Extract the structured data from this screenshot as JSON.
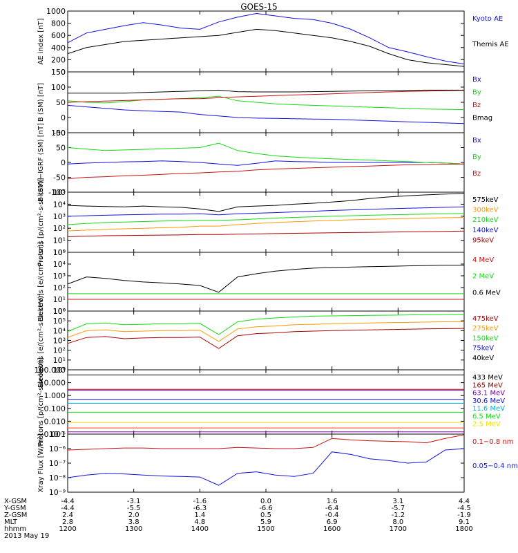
{
  "title": "GOES-15",
  "colors": {
    "blue": "#1010e0",
    "green": "#10dd10",
    "red": "#cc1010",
    "black": "#000000",
    "orange": "#ff9900",
    "darkred": "#aa0000",
    "purple": "#7700aa",
    "cyan": "#00b0d0",
    "yellow": "#f0e000",
    "salmon": "#ff4400"
  },
  "chart_data": [
    {
      "type": "line",
      "ylabel": "AE index [nT]",
      "ylim": [
        0,
        1000
      ],
      "yticks": [
        "0",
        "200",
        "400",
        "600",
        "800",
        "1000"
      ],
      "series": [
        {
          "name": "Kyoto AE",
          "color": "blue",
          "values": [
            480,
            640,
            700,
            760,
            810,
            770,
            720,
            700,
            820,
            900,
            960,
            920,
            880,
            860,
            800,
            700,
            560,
            400,
            330,
            250,
            180,
            130
          ]
        },
        {
          "name": "Themis AE",
          "color": "black",
          "values": [
            300,
            400,
            450,
            500,
            520,
            540,
            560,
            580,
            600,
            650,
            700,
            680,
            640,
            600,
            560,
            500,
            420,
            300,
            200,
            150,
            120,
            90
          ]
        }
      ]
    },
    {
      "type": "line",
      "ylabel": "B (SM) [nT]",
      "ylim": [
        -50,
        150
      ],
      "yticks": [
        "-50",
        "0",
        "50",
        "100",
        "150"
      ],
      "series": [
        {
          "name": "Bx",
          "color": "blue",
          "values": [
            40,
            35,
            30,
            25,
            22,
            20,
            18,
            10,
            5,
            0,
            -2,
            -3,
            -4,
            -5,
            -6,
            -8,
            -10,
            -12,
            -14,
            -16,
            -18,
            -20
          ]
        },
        {
          "name": "By",
          "color": "green",
          "values": [
            55,
            50,
            48,
            52,
            58,
            60,
            62,
            65,
            70,
            55,
            50,
            45,
            42,
            40,
            38,
            36,
            34,
            32,
            30,
            28,
            27,
            26
          ]
        },
        {
          "name": "Bz",
          "color": "red",
          "values": [
            50,
            52,
            54,
            56,
            58,
            60,
            62,
            62,
            65,
            68,
            70,
            72,
            74,
            76,
            78,
            80,
            82,
            84,
            86,
            87,
            88,
            89
          ]
        },
        {
          "name": "Bmag",
          "color": "black",
          "values": [
            80,
            80,
            80,
            80,
            82,
            84,
            86,
            88,
            90,
            85,
            84,
            84,
            84,
            85,
            86,
            87,
            88,
            88,
            89,
            90,
            90,
            90
          ]
        }
      ]
    },
    {
      "type": "line",
      "ylabel": "B (SM)−IGRF (SM) [nT]",
      "ylim": [
        -100,
        100
      ],
      "yticks": [
        "-100",
        "-50",
        "0",
        "50",
        "100"
      ],
      "series": [
        {
          "name": "Bx",
          "color": "blue",
          "values": [
            -5,
            -2,
            0,
            2,
            3,
            5,
            3,
            0,
            -5,
            -10,
            -3,
            5,
            3,
            2,
            0,
            0,
            0,
            0,
            0,
            0,
            -2,
            -5
          ]
        },
        {
          "name": "By",
          "color": "green",
          "values": [
            50,
            45,
            40,
            42,
            44,
            46,
            48,
            50,
            65,
            40,
            30,
            22,
            18,
            15,
            12,
            10,
            8,
            5,
            3,
            0,
            -2,
            -5
          ]
        },
        {
          "name": "Bz",
          "color": "red",
          "values": [
            -55,
            -50,
            -48,
            -45,
            -43,
            -40,
            -37,
            -35,
            -32,
            -30,
            -25,
            -22,
            -20,
            -18,
            -16,
            -14,
            -12,
            -10,
            -8,
            -7,
            -6,
            -5
          ]
        }
      ]
    },
    {
      "type": "line",
      "ylabel": "Protons [p/(cm²-s-sr-keV)]",
      "log": true,
      "ylim": [
        1,
        100000
      ],
      "yticks": [
        "10⁰",
        "10¹",
        "10²",
        "10³",
        "10⁴",
        "10⁵"
      ],
      "series": [
        {
          "name": "575keV",
          "color": "black",
          "values": [
            8000,
            7000,
            6500,
            6000,
            7000,
            6000,
            5500,
            4000,
            2500,
            6000,
            7000,
            8000,
            10000,
            12000,
            15000,
            20000,
            30000,
            40000,
            50000,
            60000,
            70000,
            80000
          ]
        },
        {
          "name": "300keV",
          "color": "orange",
          "values": [
            60,
            70,
            80,
            90,
            100,
            110,
            120,
            150,
            150,
            200,
            250,
            300,
            350,
            400,
            450,
            500,
            550,
            600,
            650,
            700,
            750,
            800
          ]
        },
        {
          "name": "210keV",
          "color": "green",
          "values": [
            200,
            250,
            300,
            330,
            360,
            400,
            420,
            450,
            450,
            500,
            600,
            700,
            800,
            900,
            1000,
            1100,
            1200,
            1300,
            1400,
            1500,
            1600,
            1700
          ]
        },
        {
          "name": "140keV",
          "color": "blue",
          "values": [
            1000,
            1100,
            1200,
            1300,
            1400,
            1500,
            1500,
            1600,
            1300,
            1600,
            1800,
            2000,
            2300,
            2600,
            3000,
            3400,
            3800,
            4200,
            4600,
            5000,
            5500,
            6000
          ]
        },
        {
          "name": "95keV",
          "color": "darkred",
          "values": [
            20,
            22,
            24,
            25,
            26,
            27,
            28,
            30,
            30,
            32,
            34,
            36,
            38,
            40,
            42,
            44,
            46,
            48,
            50,
            52,
            55,
            58
          ]
        }
      ]
    },
    {
      "type": "line",
      "ylabel": "Electrons [e/(cm²-s-sr)]",
      "log": true,
      "ylim": [
        1,
        100000
      ],
      "yticks": [
        "10⁰",
        "10¹",
        "10²",
        "10³",
        "10⁴",
        "10⁵"
      ],
      "series": [
        {
          "name": "4 MeV",
          "color": "red",
          "values": [
            10,
            10,
            10,
            10,
            10,
            10,
            10,
            10,
            10,
            10,
            10,
            10,
            10,
            10,
            10,
            10,
            10,
            10,
            10,
            10,
            10,
            10
          ]
        },
        {
          "name": "2 MeV",
          "color": "green",
          "values": [
            30,
            30,
            30,
            30,
            30,
            30,
            30,
            30,
            30,
            30,
            30,
            30,
            30,
            30,
            30,
            30,
            30,
            30,
            30,
            30,
            30,
            30
          ]
        },
        {
          "name": "0.6 MeV",
          "color": "black",
          "values": [
            200,
            800,
            600,
            400,
            300,
            250,
            200,
            150,
            40,
            800,
            1500,
            2500,
            3500,
            4500,
            5000,
            5500,
            6000,
            6500,
            7000,
            7500,
            8000,
            8000
          ]
        }
      ]
    },
    {
      "type": "line",
      "ylabel": "Electrons [e/(cm²-s-sr-keV)]",
      "log": true,
      "ylim": [
        1,
        1000000
      ],
      "yticks": [
        "10⁰",
        "10¹",
        "10²",
        "10³",
        "10⁴",
        "10⁵",
        "10⁶"
      ],
      "series": [
        {
          "name": "475keV",
          "color": "darkred",
          "values": [
            500,
            2000,
            2500,
            1500,
            1800,
            2000,
            2000,
            2200,
            150,
            3000,
            5000,
            6000,
            8000,
            9000,
            10000,
            11000,
            12000,
            13000,
            14000,
            15000,
            16000,
            17000
          ]
        },
        {
          "name": "275keV",
          "color": "orange",
          "values": [
            2000,
            10000,
            12000,
            8000,
            9000,
            10000,
            10000,
            11000,
            800,
            15000,
            25000,
            30000,
            40000,
            45000,
            50000,
            55000,
            60000,
            65000,
            70000,
            75000,
            80000,
            85000
          ]
        },
        {
          "name": "150keV",
          "color": "green",
          "values": [
            8000,
            50000,
            60000,
            40000,
            45000,
            50000,
            50000,
            55000,
            4000,
            80000,
            150000,
            200000,
            250000,
            300000,
            320000,
            340000,
            360000,
            380000,
            400000,
            420000,
            440000,
            460000
          ]
        },
        {
          "name": "75keV",
          "color": "blue",
          "values": [
            null,
            null,
            null,
            null,
            null,
            null,
            null,
            null,
            null,
            null,
            null,
            null,
            null,
            null,
            null,
            null,
            null,
            null,
            null,
            null,
            null,
            null
          ]
        },
        {
          "name": "40keV",
          "color": "black",
          "values": [
            null,
            null,
            null,
            null,
            null,
            null,
            null,
            null,
            null,
            null,
            null,
            null,
            null,
            null,
            null,
            null,
            null,
            null,
            null,
            null,
            null,
            null
          ]
        }
      ]
    },
    {
      "type": "line",
      "ylabel": "Protons [p/(cm²-s-sr-keV)]",
      "log": true,
      "ylim": [
        0.001,
        100
      ],
      "yticks": [
        "0.001",
        "0.010",
        "0.100",
        "1.000",
        "10.000",
        "100.000"
      ],
      "series": [
        {
          "name": "433 MeV",
          "color": "black",
          "values": [
            40,
            40,
            40,
            40,
            40,
            40,
            40,
            40,
            40,
            40,
            40,
            40,
            40,
            40,
            40,
            40,
            40,
            40,
            40,
            40,
            40,
            40
          ]
        },
        {
          "name": "165 MeV",
          "color": "darkred",
          "values": [
            3,
            3,
            3,
            3,
            3,
            3,
            3,
            3,
            3,
            3,
            3,
            3,
            3,
            3,
            3,
            3,
            3,
            3,
            3,
            3,
            3,
            3
          ]
        },
        {
          "name": "63.1 MeV",
          "color": "purple",
          "values": [
            2.5,
            2.5,
            2.5,
            2.5,
            2.5,
            2.5,
            2.5,
            2.5,
            2.5,
            2.5,
            2.5,
            2.5,
            2.5,
            2.5,
            2.5,
            2.5,
            2.5,
            2.5,
            2.5,
            2.5,
            2.5,
            2.5
          ]
        },
        {
          "name": "30.6 MeV",
          "color": "blue",
          "values": [
            0.5,
            0.5,
            0.5,
            0.5,
            0.5,
            0.5,
            0.5,
            0.5,
            0.5,
            0.5,
            0.5,
            0.5,
            0.5,
            0.5,
            0.5,
            0.5,
            0.5,
            0.5,
            0.5,
            0.5,
            0.5,
            0.5
          ]
        },
        {
          "name": "11.6 MeV",
          "color": "cyan",
          "values": [
            0.25,
            0.25,
            0.25,
            0.25,
            0.25,
            0.25,
            0.25,
            0.25,
            0.25,
            0.25,
            0.25,
            0.25,
            0.25,
            0.25,
            0.25,
            0.25,
            0.25,
            0.25,
            0.25,
            0.25,
            0.25,
            0.25
          ]
        },
        {
          "name": "6.5 MeV",
          "color": "green",
          "values": [
            0.05,
            0.05,
            0.05,
            0.05,
            0.05,
            0.05,
            0.05,
            0.05,
            0.05,
            0.05,
            0.05,
            0.05,
            0.05,
            0.05,
            0.05,
            0.05,
            0.05,
            0.05,
            0.05,
            0.05,
            0.05,
            0.05
          ]
        },
        {
          "name": "2.5 MeV",
          "color": "yellow",
          "values": [
            0.008,
            0.008,
            0.008,
            0.008,
            0.008,
            0.008,
            0.008,
            0.008,
            0.008,
            0.008,
            0.008,
            0.008,
            0.008,
            0.008,
            0.008,
            0.008,
            0.008,
            0.008,
            0.008,
            0.008,
            0.008,
            0.008
          ]
        },
        {
          "name": "",
          "color": "salmon",
          "values": [
            0.003,
            0.003,
            0.003,
            0.003,
            0.003,
            0.003,
            0.003,
            0.003,
            0.003,
            0.003,
            0.003,
            0.003,
            0.003,
            0.003,
            0.003,
            0.003,
            0.003,
            0.003,
            0.003,
            0.003,
            0.003,
            0.003
          ]
        },
        {
          "name": "",
          "color": "purple",
          "values": [
            0.0015,
            0.0015,
            0.0015,
            0.0015,
            0.0015,
            0.0015,
            0.0015,
            0.0015,
            0.0015,
            0.0015,
            0.0015,
            0.0015,
            0.0015,
            0.0015,
            0.0015,
            0.0015,
            0.0015,
            0.0015,
            0.0015,
            0.0015,
            0.0015,
            0.0015
          ]
        }
      ]
    },
    {
      "type": "line",
      "ylabel": "Xray Flux [W/m²]",
      "log": true,
      "ylim": [
        1e-09,
        1e-05
      ],
      "yticks": [
        "10⁻⁹",
        "10⁻⁸",
        "10⁻⁷",
        "10⁻⁶",
        "10⁻⁵"
      ],
      "series": [
        {
          "name": "0.1−0.8 nm",
          "color": "red",
          "values": [
            8e-07,
            9e-07,
            1e-06,
            1.1e-06,
            1.1e-06,
            1e-06,
            1e-06,
            1e-06,
            1e-06,
            1.2e-06,
            1.1e-06,
            1e-06,
            1e-06,
            1.2e-06,
            5e-06,
            4e-06,
            3.5e-06,
            3.2e-06,
            3e-06,
            2.5e-06,
            5e-06,
            9e-06
          ]
        },
        {
          "name": "0.05−0.4 nm",
          "color": "blue",
          "values": [
            1e-08,
            1.5e-08,
            2e-08,
            1.8e-08,
            1.5e-08,
            1.3e-08,
            1.2e-08,
            1.1e-08,
            3e-09,
            2e-08,
            2.5e-08,
            1.5e-08,
            1.2e-08,
            2e-08,
            6e-07,
            4e-07,
            2e-07,
            1.5e-07,
            1e-07,
            1.2e-07,
            8e-07,
            1e-06
          ]
        }
      ]
    }
  ],
  "xaxis": {
    "rows": [
      {
        "label": "X-GSM",
        "values": [
          "-4.4",
          "-3.1",
          "-1.6",
          "0.0",
          "1.6",
          "3.1",
          "4.4"
        ]
      },
      {
        "label": "Y-GSM",
        "values": [
          "-4.4",
          "-5.5",
          "-6.3",
          "-6.6",
          "-6.4",
          "-5.7",
          "-4.5"
        ]
      },
      {
        "label": "Z-GSM",
        "values": [
          "2.4",
          "2.0",
          "1.4",
          "0.5",
          "-0.4",
          "-1.2",
          "-1.9"
        ]
      },
      {
        "label": "MLT",
        "values": [
          "2.8",
          "3.8",
          "4.8",
          "5.9",
          "6.9",
          "8.0",
          "9.1"
        ]
      },
      {
        "label": "hhmm",
        "values": [
          "1200",
          "1300",
          "1400",
          "1500",
          "1600",
          "1700",
          "1800"
        ]
      }
    ],
    "date": "2013 May 19"
  }
}
